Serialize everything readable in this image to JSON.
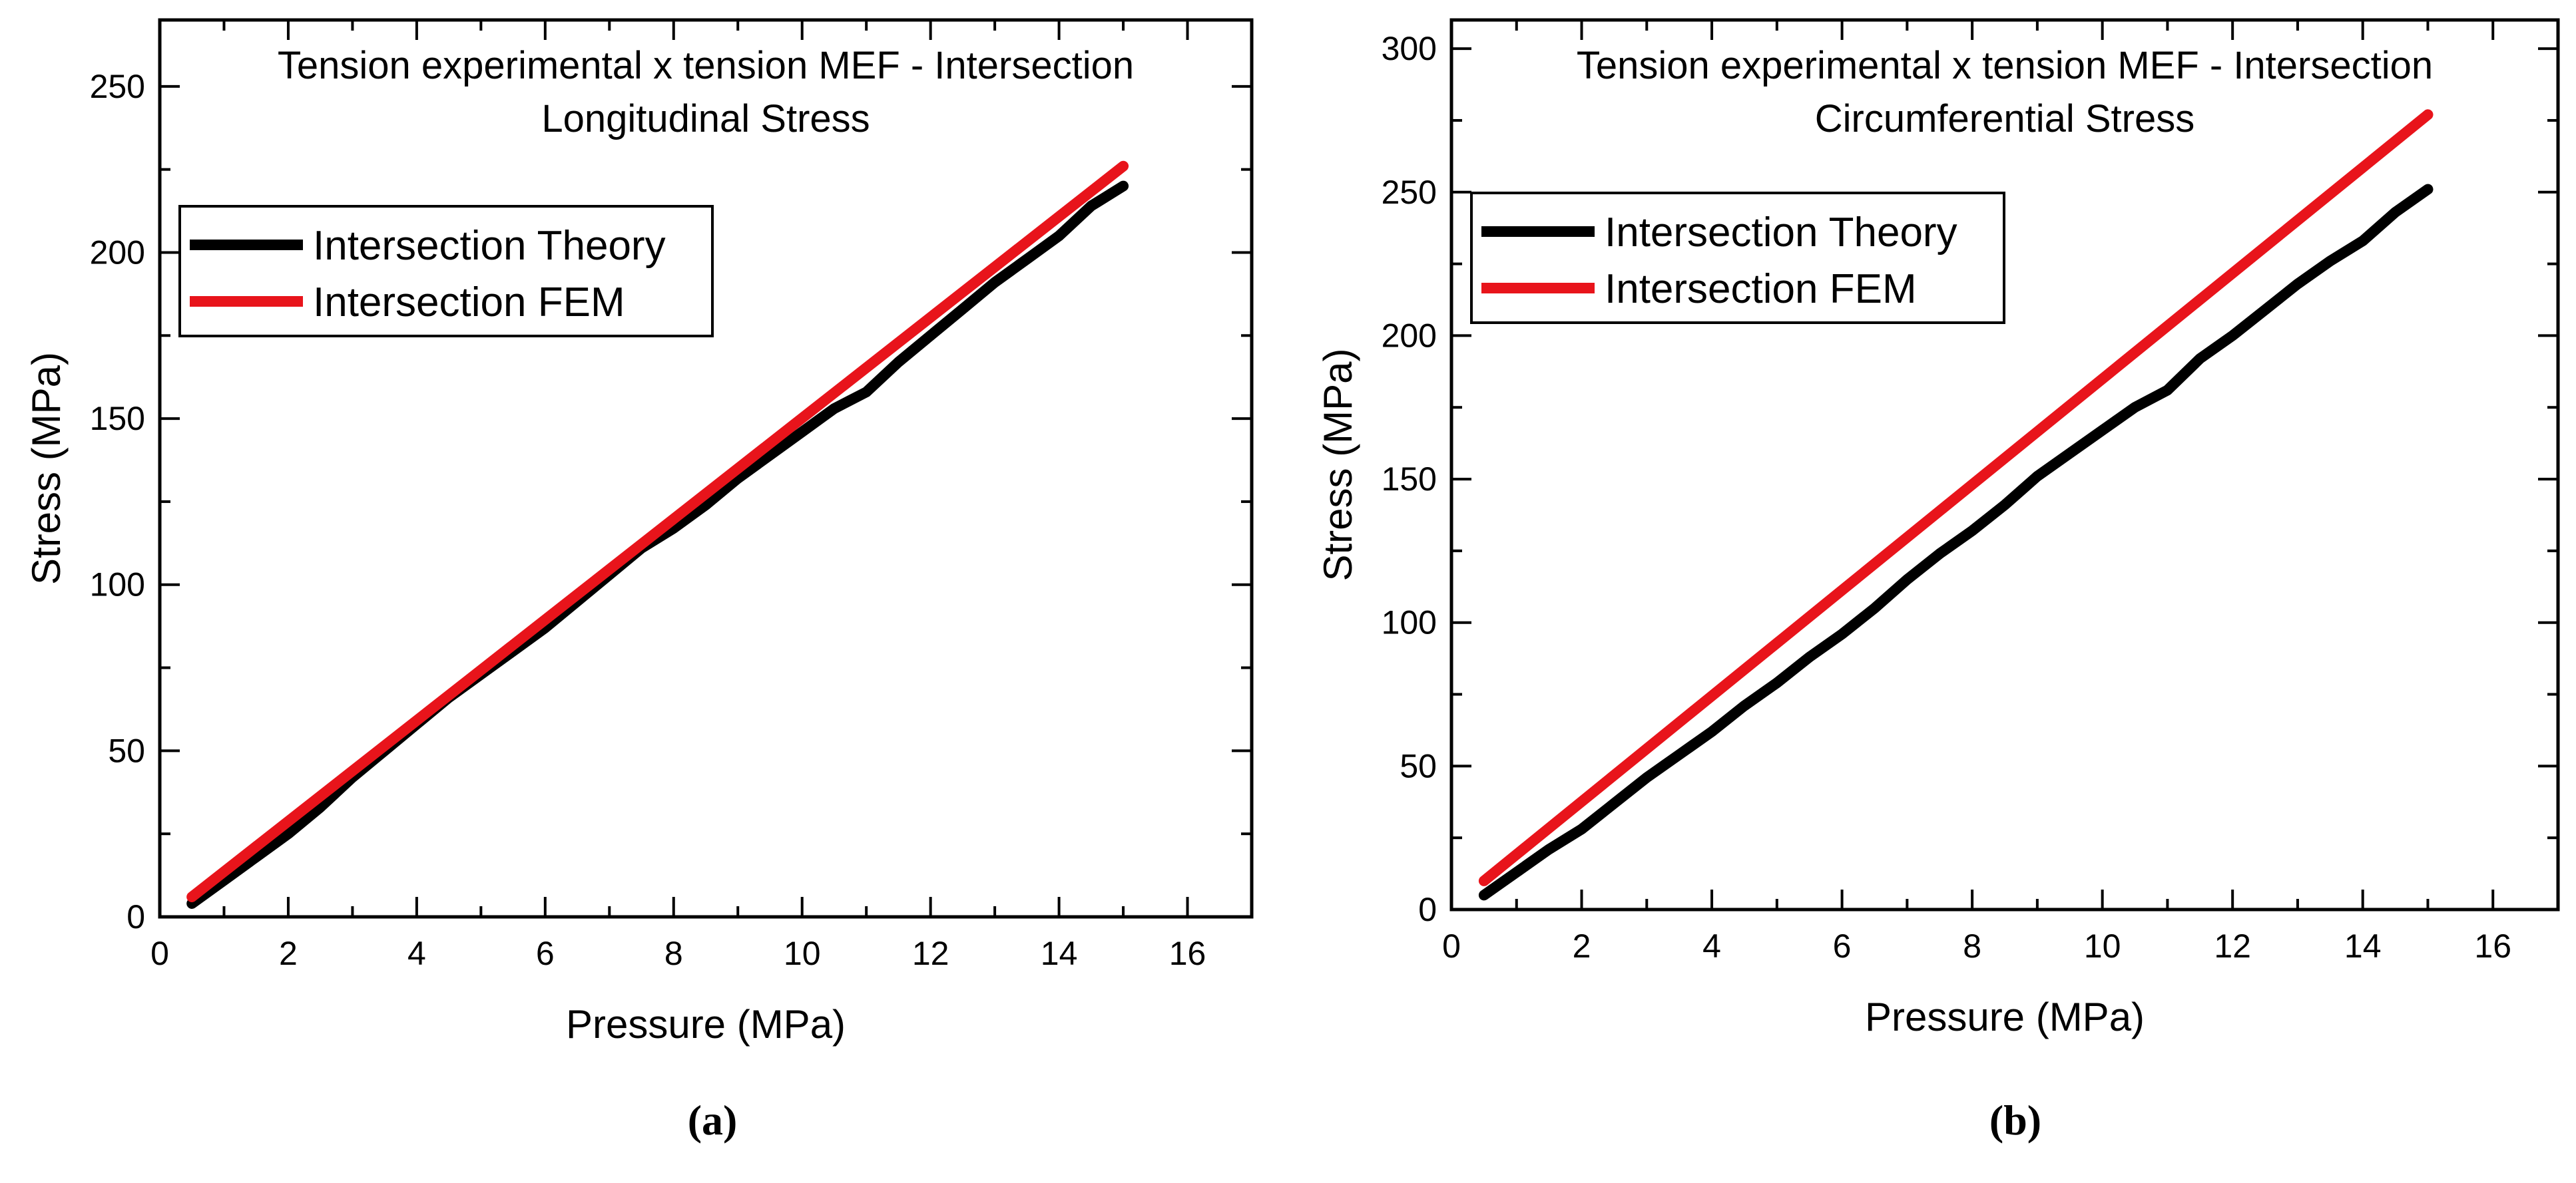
{
  "chart_data": [
    {
      "type": "line",
      "panel": "(a)",
      "title": "Tension experimental x tension MEF - Intersection",
      "subtitle": "Longitudinal Stress",
      "xlabel": "Pressure (MPa)",
      "ylabel": "Stress (MPa)",
      "xlim": [
        0,
        17
      ],
      "ylim": [
        0,
        270
      ],
      "xticks": [
        0,
        2,
        4,
        6,
        8,
        10,
        12,
        14,
        16
      ],
      "yticks": [
        0,
        50,
        100,
        150,
        200,
        250
      ],
      "legend_position": "upper-left",
      "series": [
        {
          "name": "Intersection Theory",
          "color": "#000000",
          "x": [
            0.5,
            1,
            1.5,
            2,
            2.5,
            3,
            3.5,
            4,
            4.5,
            5,
            5.5,
            6,
            6.5,
            7,
            7.5,
            8,
            8.5,
            9,
            9.5,
            10,
            10.5,
            11,
            11.5,
            12,
            12.5,
            13,
            13.5,
            14,
            14.5,
            15
          ],
          "y": [
            4,
            11,
            18,
            25,
            33,
            42,
            50,
            58,
            66,
            73,
            80,
            87,
            95,
            103,
            111,
            117,
            124,
            132,
            139,
            146,
            153,
            158,
            167,
            175,
            183,
            191,
            198,
            205,
            214,
            220
          ]
        },
        {
          "name": "Intersection FEM",
          "color": "#e8141b",
          "x": [
            0.5,
            15
          ],
          "y": [
            6,
            226
          ]
        }
      ]
    },
    {
      "type": "line",
      "panel": "(b)",
      "title": "Tension experimental x tension MEF - Intersection",
      "subtitle": "Circumferential Stress",
      "xlabel": "Pressure (MPa)",
      "ylabel": "Stress (MPa)",
      "xlim": [
        0,
        17
      ],
      "ylim": [
        0,
        310
      ],
      "xticks": [
        0,
        2,
        4,
        6,
        8,
        10,
        12,
        14,
        16
      ],
      "yticks": [
        0,
        50,
        100,
        150,
        200,
        250,
        300
      ],
      "legend_position": "upper-left",
      "series": [
        {
          "name": "Intersection Theory",
          "color": "#000000",
          "x": [
            0.5,
            1,
            1.5,
            2,
            2.5,
            3,
            3.5,
            4,
            4.5,
            5,
            5.5,
            6,
            6.5,
            7,
            7.5,
            8,
            8.5,
            9,
            9.5,
            10,
            10.5,
            11,
            11.5,
            12,
            12.5,
            13,
            13.5,
            14,
            14.5,
            15
          ],
          "y": [
            5,
            13,
            21,
            28,
            37,
            46,
            54,
            62,
            71,
            79,
            88,
            96,
            105,
            115,
            124,
            132,
            141,
            151,
            159,
            167,
            175,
            181,
            192,
            200,
            209,
            218,
            226,
            233,
            243,
            251
          ]
        },
        {
          "name": "Intersection FEM",
          "color": "#e8141b",
          "x": [
            0.5,
            15
          ],
          "y": [
            10,
            277
          ]
        }
      ]
    }
  ]
}
